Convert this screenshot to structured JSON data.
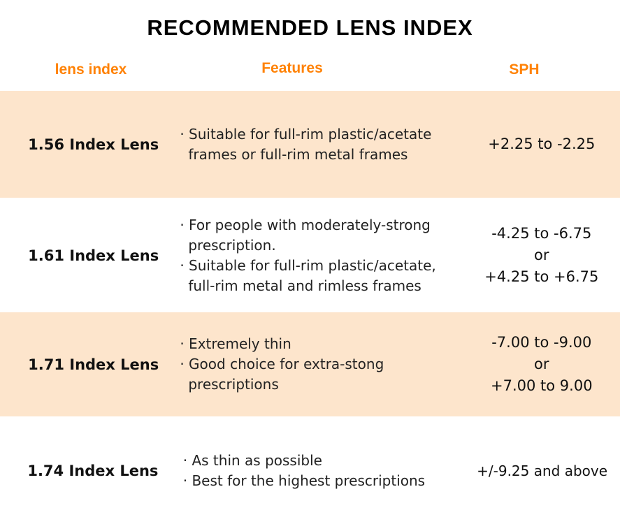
{
  "title": "RECOMMENDED LENS INDEX",
  "headers": {
    "index": "lens index",
    "features": "Features",
    "sph": "SPH"
  },
  "rows": [
    {
      "name": "1.56 Index Lens",
      "features": [
        "· Suitable for full-rim plastic/acetate frames or full-rim metal frames"
      ],
      "sph": [
        "+2.25 to -2.25"
      ]
    },
    {
      "name": "1.61 Index Lens",
      "features": [
        "· For people with moderately-strong prescription.",
        "· Suitable for full-rim plastic/acetate, full-rim metal and rimless frames"
      ],
      "sph": [
        "-4.25 to -6.75",
        "or",
        "+4.25 to +6.75"
      ]
    },
    {
      "name": "1.71 Index Lens",
      "features": [
        "· Extremely thin",
        "· Good choice for extra-stong prescriptions"
      ],
      "sph": [
        "-7.00 to -9.00",
        "or",
        "+7.00 to 9.00"
      ]
    },
    {
      "name": "1.74 Index Lens",
      "features": [
        "· As thin as possible",
        "· Best for the highest prescriptions"
      ],
      "sph": [
        "+/-9.25 and above"
      ]
    }
  ]
}
